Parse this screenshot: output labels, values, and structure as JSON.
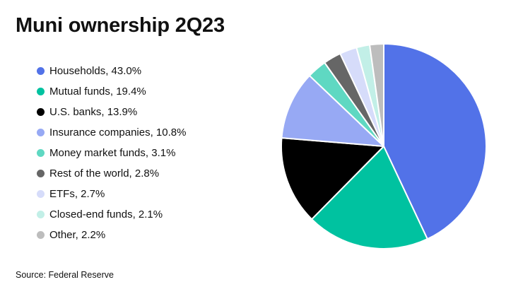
{
  "title": "Muni ownership 2Q23",
  "source": "Source: Federal Reserve",
  "chart_data": {
    "type": "pie",
    "title": "Muni ownership 2Q23",
    "unit": "%",
    "slices": [
      {
        "label": "Households",
        "value": 43.0,
        "text": "Households, 43.0%",
        "color": "#5272e8"
      },
      {
        "label": "Mutual funds",
        "value": 19.4,
        "text": "Mutual funds, 19.4%",
        "color": "#00c2a0"
      },
      {
        "label": "U.S. banks",
        "value": 13.9,
        "text": "U.S. banks, 13.9%",
        "color": "#000000"
      },
      {
        "label": "Insurance companies",
        "value": 10.8,
        "text": "Insurance companies, 10.8%",
        "color": "#97a9f4"
      },
      {
        "label": "Money market funds",
        "value": 3.1,
        "text": "Money market funds, 3.1%",
        "color": "#5fd8c2"
      },
      {
        "label": "Rest of the world",
        "value": 2.8,
        "text": "Rest of the world, 2.8%",
        "color": "#666666"
      },
      {
        "label": "ETFs",
        "value": 2.7,
        "text": "ETFs, 2.7%",
        "color": "#d6dcfa"
      },
      {
        "label": "Closed-end funds",
        "value": 2.1,
        "text": "Closed-end funds, 2.1%",
        "color": "#c2efe7"
      },
      {
        "label": "Other",
        "value": 2.2,
        "text": "Other, 2.2%",
        "color": "#bdbdbd"
      }
    ],
    "legend_position": "left"
  }
}
